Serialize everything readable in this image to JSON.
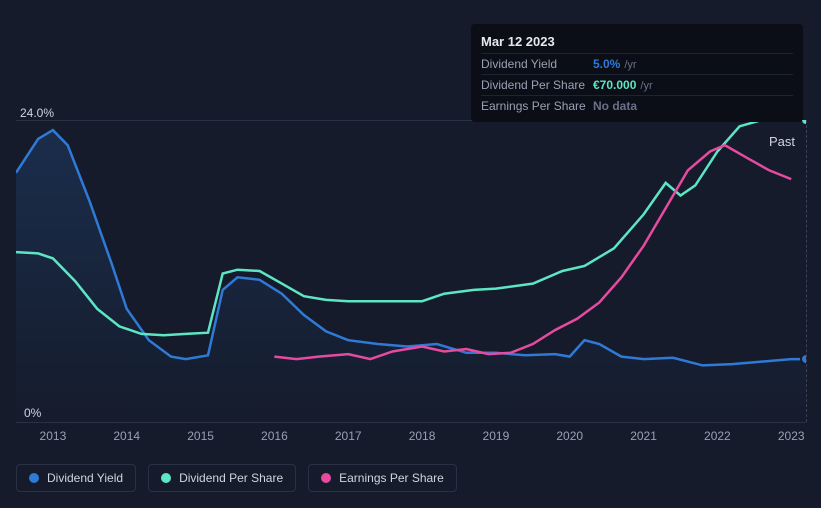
{
  "chart": {
    "background": "#151b2b",
    "plot_border_color": "#2a3145",
    "y": {
      "max_label": "24.0%",
      "min_label": "0%",
      "ymin": 0,
      "ymax": 24.0,
      "label_color": "#d0d4e0",
      "label_fontsize": 12
    },
    "x": {
      "start": 2012.5,
      "end": 2023.2,
      "ticks": [
        "2013",
        "2014",
        "2015",
        "2016",
        "2017",
        "2018",
        "2019",
        "2020",
        "2021",
        "2022",
        "2023"
      ],
      "tick_color": "#9aa0b4",
      "tick_fontsize": 12
    },
    "past_label": "Past",
    "marker_x": 2023.2,
    "series": {
      "dividend_yield": {
        "label": "Dividend Yield",
        "color": "#2f7ad6",
        "has_area": true,
        "area_gradient_top": "#2f7ad6",
        "area_gradient_bottom": "#151b2b",
        "line_width": 2.5,
        "data": [
          [
            2012.5,
            19.8
          ],
          [
            2012.8,
            22.5
          ],
          [
            2013.0,
            23.2
          ],
          [
            2013.2,
            22.0
          ],
          [
            2013.5,
            17.5
          ],
          [
            2013.8,
            12.5
          ],
          [
            2014.0,
            9.0
          ],
          [
            2014.3,
            6.5
          ],
          [
            2014.6,
            5.2
          ],
          [
            2014.8,
            5.0
          ],
          [
            2015.1,
            5.3
          ],
          [
            2015.3,
            10.5
          ],
          [
            2015.5,
            11.5
          ],
          [
            2015.8,
            11.3
          ],
          [
            2016.1,
            10.2
          ],
          [
            2016.4,
            8.5
          ],
          [
            2016.7,
            7.2
          ],
          [
            2017.0,
            6.5
          ],
          [
            2017.4,
            6.2
          ],
          [
            2017.8,
            6.0
          ],
          [
            2018.2,
            6.2
          ],
          [
            2018.6,
            5.5
          ],
          [
            2019.0,
            5.5
          ],
          [
            2019.4,
            5.3
          ],
          [
            2019.8,
            5.4
          ],
          [
            2020.0,
            5.2
          ],
          [
            2020.2,
            6.5
          ],
          [
            2020.4,
            6.2
          ],
          [
            2020.7,
            5.2
          ],
          [
            2021.0,
            5.0
          ],
          [
            2021.4,
            5.1
          ],
          [
            2021.8,
            4.5
          ],
          [
            2022.2,
            4.6
          ],
          [
            2022.6,
            4.8
          ],
          [
            2023.0,
            5.0
          ],
          [
            2023.2,
            5.0
          ]
        ]
      },
      "dividend_per_share": {
        "label": "Dividend Per Share",
        "color": "#5de6c3",
        "has_area": false,
        "line_width": 2.5,
        "data": [
          [
            2012.5,
            13.5
          ],
          [
            2012.8,
            13.4
          ],
          [
            2013.0,
            13.0
          ],
          [
            2013.3,
            11.2
          ],
          [
            2013.6,
            9.0
          ],
          [
            2013.9,
            7.6
          ],
          [
            2014.2,
            7.0
          ],
          [
            2014.5,
            6.9
          ],
          [
            2014.8,
            7.0
          ],
          [
            2015.1,
            7.1
          ],
          [
            2015.3,
            11.8
          ],
          [
            2015.5,
            12.1
          ],
          [
            2015.8,
            12.0
          ],
          [
            2016.1,
            11.0
          ],
          [
            2016.4,
            10.0
          ],
          [
            2016.7,
            9.7
          ],
          [
            2017.0,
            9.6
          ],
          [
            2017.5,
            9.6
          ],
          [
            2018.0,
            9.6
          ],
          [
            2018.3,
            10.2
          ],
          [
            2018.7,
            10.5
          ],
          [
            2019.0,
            10.6
          ],
          [
            2019.5,
            11.0
          ],
          [
            2019.9,
            12.0
          ],
          [
            2020.2,
            12.4
          ],
          [
            2020.6,
            13.8
          ],
          [
            2021.0,
            16.5
          ],
          [
            2021.3,
            19.0
          ],
          [
            2021.5,
            18.0
          ],
          [
            2021.7,
            18.8
          ],
          [
            2022.0,
            21.5
          ],
          [
            2022.3,
            23.5
          ],
          [
            2022.6,
            24.0
          ],
          [
            2023.0,
            24.0
          ],
          [
            2023.2,
            24.0
          ]
        ]
      },
      "earnings_per_share": {
        "label": "Earnings Per Share",
        "color": "#e64ba0",
        "has_area": false,
        "line_width": 2.5,
        "data": [
          [
            2016.0,
            5.2
          ],
          [
            2016.3,
            5.0
          ],
          [
            2016.6,
            5.2
          ],
          [
            2017.0,
            5.4
          ],
          [
            2017.3,
            5.0
          ],
          [
            2017.6,
            5.6
          ],
          [
            2018.0,
            6.0
          ],
          [
            2018.3,
            5.6
          ],
          [
            2018.6,
            5.8
          ],
          [
            2018.9,
            5.4
          ],
          [
            2019.2,
            5.5
          ],
          [
            2019.5,
            6.2
          ],
          [
            2019.8,
            7.3
          ],
          [
            2020.1,
            8.2
          ],
          [
            2020.4,
            9.5
          ],
          [
            2020.7,
            11.5
          ],
          [
            2021.0,
            14.0
          ],
          [
            2021.3,
            17.0
          ],
          [
            2021.6,
            20.0
          ],
          [
            2021.9,
            21.5
          ],
          [
            2022.1,
            22.0
          ],
          [
            2022.4,
            21.0
          ],
          [
            2022.7,
            20.0
          ],
          [
            2023.0,
            19.3
          ]
        ]
      }
    },
    "legend_border": "#2a3145",
    "legend_text_color": "#d0d4e0"
  },
  "tooltip": {
    "title": "Mar 12 2023",
    "rows": [
      {
        "label": "Dividend Yield",
        "value": "5.0%",
        "suffix": "/yr",
        "value_color": "#2f7ad6"
      },
      {
        "label": "Dividend Per Share",
        "value": "€70.000",
        "suffix": "/yr",
        "value_color": "#5de6c3"
      },
      {
        "label": "Earnings Per Share",
        "value": "No data",
        "suffix": "",
        "value_color": "#6a7089",
        "nodata": true
      }
    ],
    "bg": "#0b0e16",
    "divider": "#1e2332"
  }
}
